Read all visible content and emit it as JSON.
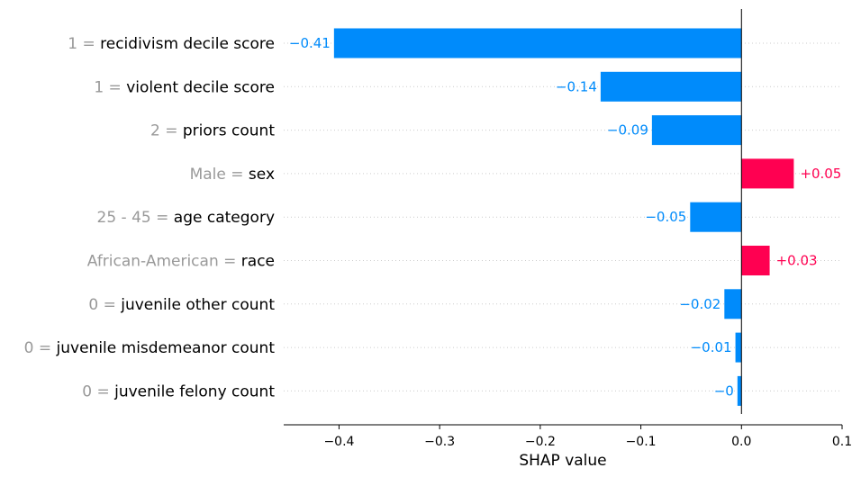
{
  "chart_data": {
    "type": "bar",
    "orientation": "horizontal",
    "xlabel": "SHAP value",
    "xlim": [
      -0.455,
      0.1
    ],
    "x_ticks": [
      {
        "value": -0.4,
        "label": "−0.4"
      },
      {
        "value": -0.3,
        "label": "−0.3"
      },
      {
        "value": -0.2,
        "label": "−0.2"
      },
      {
        "value": -0.1,
        "label": "−0.1"
      },
      {
        "value": 0.0,
        "label": "0.0"
      },
      {
        "value": 0.1,
        "label": "0.1"
      }
    ],
    "colors": {
      "negative": "#008bfb",
      "positive": "#ff0051",
      "feature_value": "#999999",
      "feature_name": "#000000"
    },
    "features": [
      {
        "value": "1",
        "name": "recidivism decile score",
        "shap": -0.405,
        "label": "−0.41"
      },
      {
        "value": "1",
        "name": "violent decile score",
        "shap": -0.14,
        "label": "−0.14"
      },
      {
        "value": "2",
        "name": "priors count",
        "shap": -0.089,
        "label": "−0.09"
      },
      {
        "value": "Male",
        "name": "sex",
        "shap": 0.052,
        "label": "+0.05"
      },
      {
        "value": "25 - 45",
        "name": "age category",
        "shap": -0.051,
        "label": "−0.05"
      },
      {
        "value": "African-American",
        "name": "race",
        "shap": 0.028,
        "label": "+0.03"
      },
      {
        "value": "0",
        "name": "juvenile other count",
        "shap": -0.017,
        "label": "−0.02"
      },
      {
        "value": "0",
        "name": "juvenile misdemeanor count",
        "shap": -0.006,
        "label": "−0.01"
      },
      {
        "value": "0",
        "name": "juvenile felony count",
        "shap": -0.004,
        "label": "−0"
      }
    ]
  }
}
